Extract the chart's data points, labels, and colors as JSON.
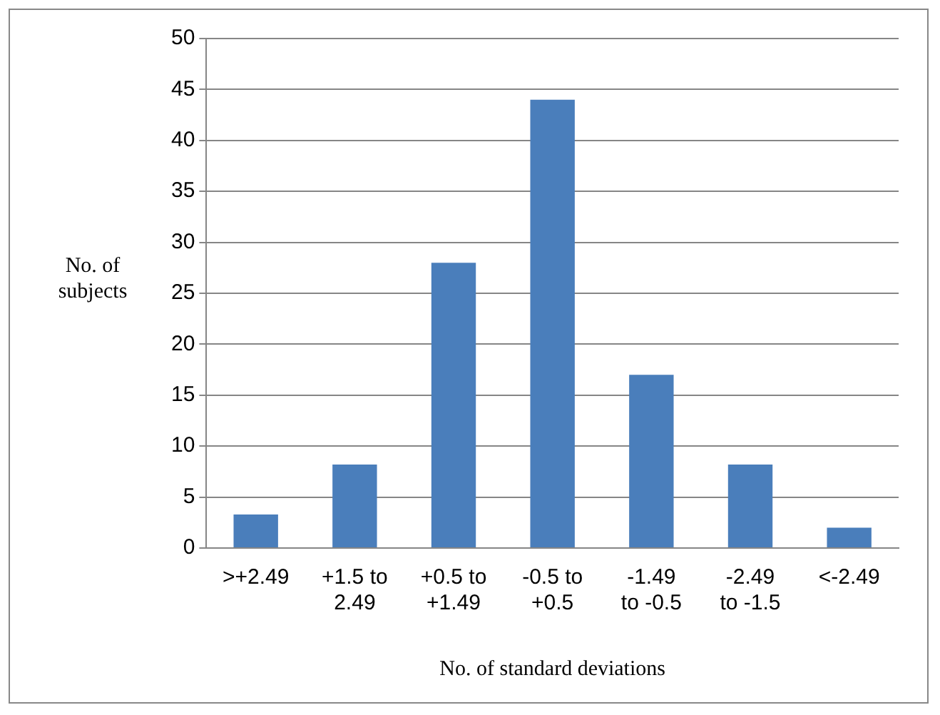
{
  "chart_data": {
    "type": "bar",
    "xlabel": "No. of standard deviations",
    "ylabel": "No. of\nsubjects",
    "categories": [
      ">+2.49",
      "+1.5 to\n2.49",
      "+0.5 to\n+1.49",
      "-0.5 to\n+0.5",
      "-1.49\nto -0.5",
      "-2.49\nto -1.5",
      "<-2.49"
    ],
    "values": [
      3.3,
      8.2,
      28,
      44,
      17,
      8.2,
      2
    ],
    "color": "#4a7ebb",
    "ylim": [
      0,
      50
    ],
    "yticks": [
      0,
      5,
      10,
      15,
      20,
      25,
      30,
      35,
      40,
      45,
      50
    ],
    "grid": "y"
  }
}
